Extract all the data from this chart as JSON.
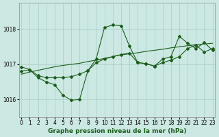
{
  "bg_color": "#cce8e2",
  "line_color": "#1a5c1a",
  "grid_color": "#a8ccc4",
  "xlabel": "Graphe pression niveau de la mer (hPa)",
  "ylim": [
    1015.5,
    1018.75
  ],
  "xlim": [
    -0.3,
    23.3
  ],
  "yticks": [
    1016,
    1017,
    1018
  ],
  "xticks": [
    0,
    1,
    2,
    3,
    4,
    5,
    6,
    7,
    8,
    9,
    10,
    11,
    12,
    13,
    14,
    15,
    16,
    17,
    18,
    19,
    20,
    21,
    22,
    23
  ],
  "line1_x": [
    0,
    1,
    2,
    3,
    4,
    5,
    6,
    7,
    8,
    9,
    10,
    11,
    12,
    13,
    14,
    15,
    16,
    17,
    18,
    19,
    20,
    21,
    22,
    23
  ],
  "line1_y": [
    1016.93,
    1016.85,
    1016.62,
    1016.5,
    1016.42,
    1016.12,
    1015.98,
    1016.0,
    1016.82,
    1017.15,
    1018.05,
    1018.12,
    1018.1,
    1017.52,
    1017.05,
    1017.02,
    1016.95,
    1017.15,
    1017.22,
    1017.8,
    1017.6,
    1017.45,
    1017.62,
    1017.4
  ],
  "line2_x": [
    0,
    1,
    2,
    3,
    4,
    5,
    6,
    7,
    8,
    9,
    10,
    11,
    12,
    13,
    14,
    15,
    16,
    17,
    18,
    19,
    20,
    21,
    22,
    23
  ],
  "line2_y": [
    1016.8,
    1016.85,
    1016.68,
    1016.62,
    1016.62,
    1016.62,
    1016.65,
    1016.72,
    1016.82,
    1017.05,
    1017.15,
    1017.22,
    1017.28,
    1017.32,
    1017.05,
    1017.02,
    1016.95,
    1017.05,
    1017.12,
    1017.22,
    1017.45,
    1017.55,
    1017.35,
    1017.45
  ],
  "line3_x": [
    0,
    1,
    2,
    3,
    4,
    5,
    6,
    7,
    8,
    9,
    10,
    11,
    12,
    13,
    14,
    15,
    16,
    17,
    18,
    19,
    20,
    21,
    22,
    23
  ],
  "line3_y": [
    1016.72,
    1016.78,
    1016.83,
    1016.88,
    1016.93,
    1016.97,
    1017.0,
    1017.03,
    1017.08,
    1017.12,
    1017.17,
    1017.22,
    1017.27,
    1017.3,
    1017.33,
    1017.37,
    1017.4,
    1017.43,
    1017.47,
    1017.5,
    1017.53,
    1017.56,
    1017.58,
    1017.6
  ],
  "marker_size": 2.0,
  "line_width": 0.8,
  "tick_fontsize": 5.5,
  "label_fontsize": 6.5
}
